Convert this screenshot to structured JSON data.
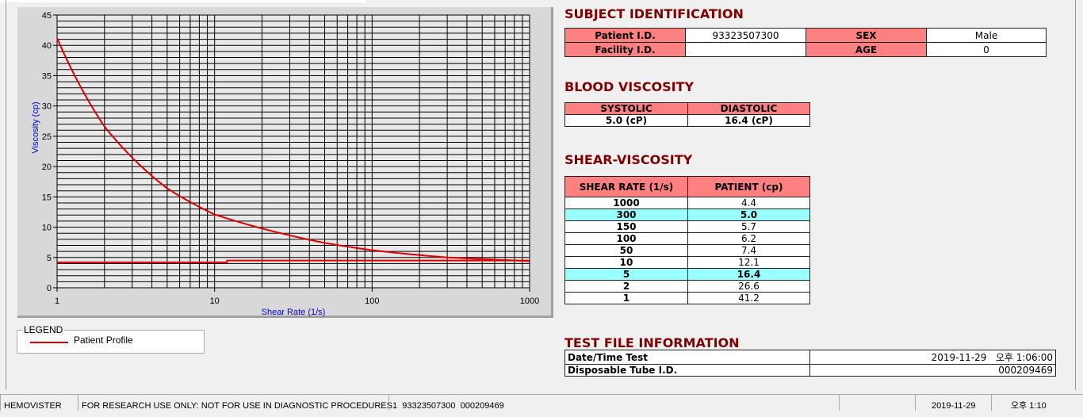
{
  "chart_data": {
    "type": "line",
    "xlabel": "Shear Rate (1/s)",
    "ylabel": "Viscosity (cp)",
    "xscale": "log",
    "xlim": [
      1,
      1000
    ],
    "ylim": [
      0,
      45
    ],
    "xticks": [
      "1",
      "10",
      "100",
      "1000"
    ],
    "yticks": [
      "0",
      "5",
      "10",
      "15",
      "20",
      "25",
      "30",
      "35",
      "40",
      "45"
    ],
    "grid": true,
    "legend_placement": "bottom-left",
    "series": [
      {
        "name": "Patient Profile",
        "color": "#dd0000",
        "x": [
          1,
          2,
          5,
          10,
          50,
          100,
          150,
          300,
          1000
        ],
        "y": [
          41.2,
          26.6,
          16.4,
          12.1,
          7.4,
          6.2,
          5.7,
          5.0,
          4.4
        ]
      },
      {
        "color": "#dd0000",
        "x": [
          1,
          12,
          12,
          1000
        ],
        "y": [
          4.2,
          4.2,
          4.5,
          4.5
        ]
      }
    ]
  },
  "legend": {
    "title": "LEGEND",
    "item": "Patient Profile"
  },
  "subject": {
    "title": "SUBJECT IDENTIFICATION",
    "patient_id_label": "Patient I.D.",
    "patient_id": "93323507300",
    "sex_label": "SEX",
    "sex": "Male",
    "facility_label": "Facility I.D.",
    "facility": "",
    "age_label": "AGE",
    "age": "0"
  },
  "blood": {
    "title": "BLOOD VISCOSITY",
    "systolic_label": "SYSTOLIC",
    "diastolic_label": "DIASTOLIC",
    "systolic": "5.0 (cP)",
    "diastolic": "16.4 (cP)"
  },
  "shear": {
    "title": "SHEAR-VISCOSITY",
    "col1": "SHEAR RATE (1/s)",
    "col2": "PATIENT (cp)",
    "rows": [
      [
        "1000",
        "4.4",
        false
      ],
      [
        "300",
        "5.0",
        true
      ],
      [
        "150",
        "5.7",
        false
      ],
      [
        "100",
        "6.2",
        false
      ],
      [
        "50",
        "7.4",
        false
      ],
      [
        "10",
        "12.1",
        false
      ],
      [
        "5",
        "16.4",
        true
      ],
      [
        "2",
        "26.6",
        false
      ],
      [
        "1",
        "41.2",
        false
      ]
    ],
    "highlight_color": "#99ffff"
  },
  "testfile": {
    "title": "TEST FILE INFORMATION",
    "date_label": "Date/Time Test",
    "date": "2019-11-29   오후 1:06:00",
    "tube_label": "Disposable Tube I.D.",
    "tube": "000209469"
  },
  "status": {
    "app": "HEMOVISTER",
    "notice": "FOR RESEARCH USE ONLY: NOT FOR USE IN DIAGNOSTIC PROCEDURES",
    "record": "1  93323507300  000209469",
    "blank": "",
    "date": "2019-11-29",
    "time": "오후 1:10"
  }
}
